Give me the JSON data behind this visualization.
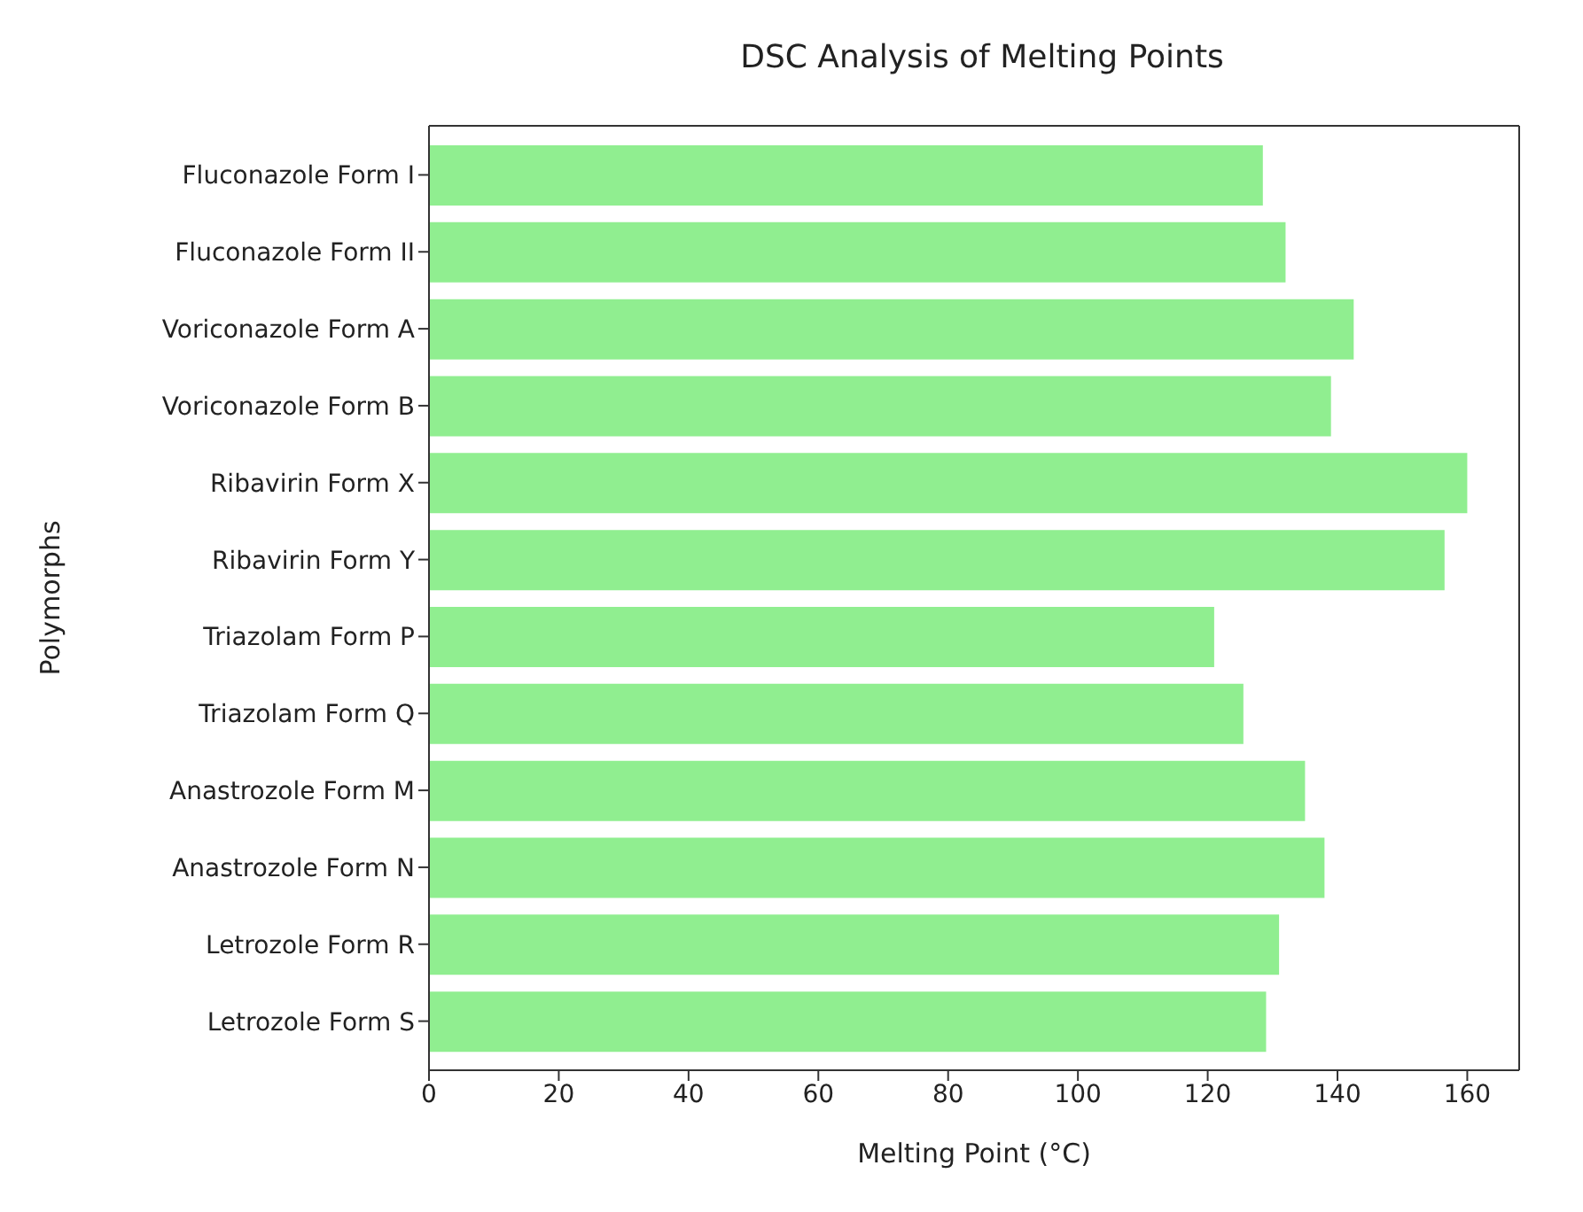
{
  "chart_data": {
    "type": "bar",
    "orientation": "horizontal",
    "title": "DSC Analysis of Melting Points",
    "xlabel": "Melting Point (°C)",
    "ylabel": "Polymorphs",
    "categories": [
      "Fluconazole Form I",
      "Fluconazole Form II",
      "Voriconazole Form A",
      "Voriconazole Form B",
      "Ribavirin Form X",
      "Ribavirin Form Y",
      "Triazolam Form P",
      "Triazolam Form Q",
      "Anastrozole Form M",
      "Anastrozole Form N",
      "Letrozole Form R",
      "Letrozole Form S"
    ],
    "values": [
      128.5,
      132,
      142.5,
      139,
      160,
      156.5,
      121,
      125.5,
      135,
      138,
      131,
      129
    ],
    "color": "#90ee90",
    "xlim": [
      0,
      168
    ],
    "xticks": [
      0,
      20,
      40,
      60,
      80,
      100,
      120,
      140,
      160
    ],
    "grid": false
  }
}
